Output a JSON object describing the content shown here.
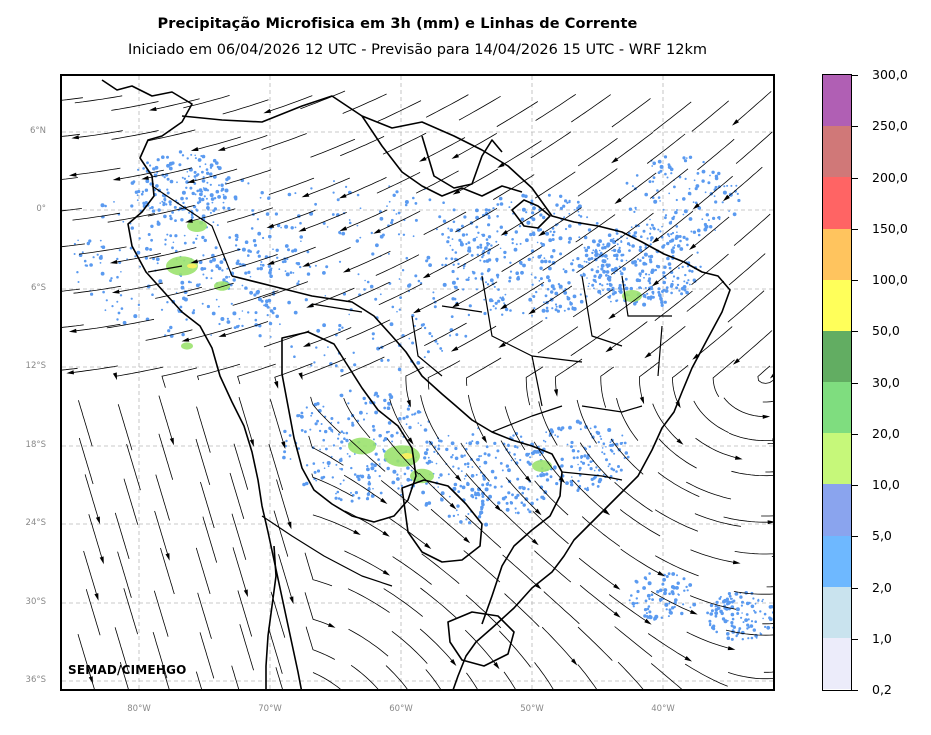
{
  "title": "Precipitação Microfisica em 3h (mm) e Linhas de Corrente",
  "subtitle": "Iniciado em 06/04/2026 12 UTC - Previsão para 14/04/2026 15 UTC - WRF 12km",
  "credit": "SEMAD/CIMEHGO",
  "lat_ticks": [
    "6°N",
    "0°",
    "6°S",
    "12°S",
    "18°S",
    "24°S",
    "30°S",
    "36°S"
  ],
  "lon_ticks": [
    "80°W",
    "70°W",
    "60°W",
    "50°W",
    "40°W"
  ],
  "colorbar": {
    "labels": [
      "300,0",
      "250,0",
      "200,0",
      "150,0",
      "100,0",
      "50,0",
      "30,0",
      "20,0",
      "10,0",
      "5,0",
      "2,0",
      "1,0",
      "0,2"
    ],
    "colors": [
      "#b05fb4",
      "#d07878",
      "#ff6464",
      "#ffc45e",
      "#ffff5a",
      "#62ad62",
      "#7fdd7f",
      "#c6f87a",
      "#8aa4ee",
      "#6eb8ff",
      "#c9e3ee",
      "#ececfa"
    ]
  },
  "colors": {
    "rain_light": "#5a9af0",
    "rain_moderate": "#9be26e",
    "rain_heavy": "#f5f060",
    "gridline": "#b8b8b8",
    "coast": "#000000"
  }
}
